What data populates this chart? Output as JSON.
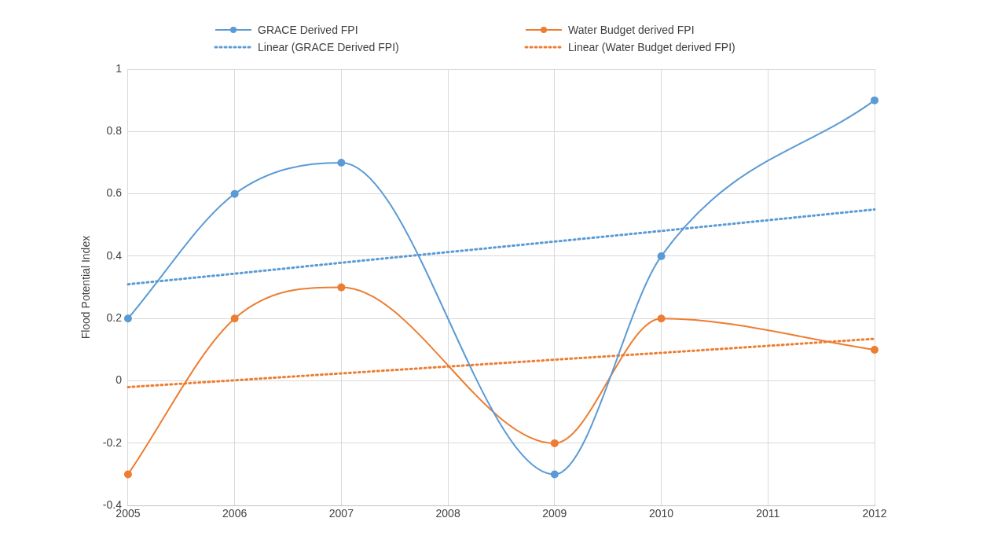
{
  "chart_data": {
    "type": "line",
    "ylabel": "Flood Potential Index",
    "x": [
      2005,
      2006,
      2007,
      2009,
      2010,
      2012
    ],
    "series": [
      {
        "name": "GRACE Derived FPI",
        "color": "#5b9bd5",
        "values": [
          0.2,
          0.6,
          0.7,
          -0.3,
          0.4,
          0.9
        ],
        "marker": "circle",
        "line_style": "solid"
      },
      {
        "name": "Water Budget derived FPI",
        "color": "#ed7d31",
        "values": [
          -0.3,
          0.2,
          0.3,
          -0.2,
          0.2,
          0.1
        ],
        "marker": "circle",
        "line_style": "solid"
      },
      {
        "name": "Linear (GRACE Derived FPI)",
        "color": "#5b9bd5",
        "values": [
          0.31,
          0.344,
          0.379,
          0.447,
          0.481,
          0.55
        ],
        "marker": "none",
        "line_style": "dotted"
      },
      {
        "name": "Linear (Water Budget derived FPI)",
        "color": "#ed7d31",
        "values": [
          -0.02,
          0.002,
          0.024,
          0.068,
          0.09,
          0.135
        ],
        "marker": "none",
        "line_style": "dotted"
      }
    ],
    "xlim": [
      2005,
      2012
    ],
    "xticks": [
      2005,
      2006,
      2007,
      2008,
      2009,
      2010,
      2011,
      2012
    ],
    "ylim": [
      -0.4,
      1
    ],
    "yticks": [
      -0.4,
      -0.2,
      0,
      0.2,
      0.4,
      0.6,
      0.8,
      1
    ],
    "grid": true,
    "legend": "top"
  }
}
